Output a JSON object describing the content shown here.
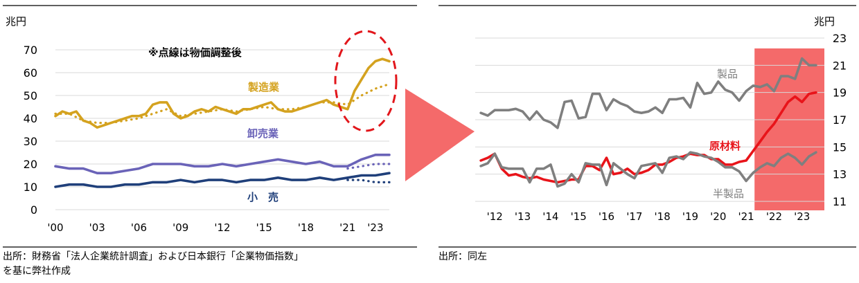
{
  "left_chart": {
    "unit": "兆円",
    "note": "※点線は物価調整後",
    "source_line1": "出所：財務省「法人企業統計調査」および日本銀行「企業物価指数」",
    "source_line2": "を基に弊社作成"
  },
  "right_chart": {
    "unit": "兆円",
    "source": "出所：同左"
  },
  "chart_data": [
    {
      "type": "line",
      "title": "",
      "ylabel": "兆円",
      "ylim": [
        0,
        70
      ],
      "yticks": [
        "0",
        "10",
        "20",
        "30",
        "40",
        "50",
        "60",
        "70"
      ],
      "xlim": [
        2000,
        2024
      ],
      "xticks": [
        {
          "x": 2000,
          "label": "'00"
        },
        {
          "x": 2003,
          "label": "'03"
        },
        {
          "x": 2006,
          "label": "'06"
        },
        {
          "x": 2009,
          "label": "'09"
        },
        {
          "x": 2012,
          "label": "'12"
        },
        {
          "x": 2015,
          "label": "'15"
        },
        {
          "x": 2018,
          "label": "'18"
        },
        {
          "x": 2021,
          "label": "'21"
        },
        {
          "x": 2023,
          "label": "'23"
        }
      ],
      "grid": true,
      "annotations": [
        "※点線は物価調整後"
      ],
      "series": [
        {
          "name": "製造業",
          "color": "#d4a21f",
          "style": "solid",
          "x": [
            2000,
            2000.5,
            2001,
            2001.5,
            2002,
            2002.5,
            2003,
            2003.5,
            2004,
            2004.5,
            2005,
            2005.5,
            2006,
            2006.5,
            2007,
            2007.5,
            2008,
            2008.5,
            2009,
            2009.5,
            2010,
            2010.5,
            2011,
            2011.5,
            2012,
            2012.5,
            2013,
            2013.5,
            2014,
            2014.5,
            2015,
            2015.5,
            2016,
            2016.5,
            2017,
            2017.5,
            2018,
            2018.5,
            2019,
            2019.5,
            2020,
            2020.5,
            2021,
            2021.5,
            2022,
            2022.5,
            2023,
            2023.5,
            2024
          ],
          "y": [
            41,
            43,
            42,
            43,
            39,
            38,
            36,
            37,
            38,
            39,
            40,
            41,
            41,
            42,
            46,
            47,
            47,
            42,
            40,
            41,
            43,
            44,
            43,
            45,
            44,
            43,
            42,
            44,
            44,
            45,
            46,
            47,
            44,
            43,
            43,
            44,
            45,
            46,
            47,
            48,
            46,
            45,
            44,
            52,
            57,
            62,
            65,
            66,
            65
          ]
        },
        {
          "name": "",
          "color": "#d4a21f",
          "style": "dotted",
          "x": [
            2000,
            2001,
            2002,
            2003,
            2004,
            2005,
            2006,
            2007,
            2008,
            2009,
            2010,
            2011,
            2012,
            2013,
            2014,
            2015,
            2016,
            2017,
            2018,
            2019,
            2020,
            2021,
            2022,
            2023,
            2024
          ],
          "y": [
            42,
            42,
            39,
            38,
            38,
            39,
            40,
            42,
            44,
            41,
            42,
            43,
            44,
            43,
            44,
            45,
            44,
            44,
            45,
            47,
            47,
            46,
            50,
            53,
            55
          ]
        },
        {
          "name": "卸売業",
          "color": "#6a63b8",
          "style": "solid",
          "x": [
            2000,
            2001,
            2002,
            2003,
            2004,
            2005,
            2006,
            2007,
            2008,
            2009,
            2010,
            2011,
            2012,
            2013,
            2014,
            2015,
            2016,
            2017,
            2018,
            2019,
            2020,
            2021,
            2022,
            2023,
            2024
          ],
          "y": [
            19,
            18,
            18,
            16,
            16,
            17,
            18,
            20,
            20,
            20,
            19,
            19,
            20,
            19,
            20,
            21,
            22,
            21,
            20,
            21,
            19,
            19,
            22,
            24,
            24
          ]
        },
        {
          "name": "",
          "color": "#6a63b8",
          "style": "dotted",
          "x": [
            2021,
            2022,
            2023,
            2024
          ],
          "y": [
            18,
            19,
            20,
            20
          ]
        },
        {
          "name": "小　売",
          "color": "#1f3f7a",
          "style": "solid",
          "x": [
            2000,
            2001,
            2002,
            2003,
            2004,
            2005,
            2006,
            2007,
            2008,
            2009,
            2010,
            2011,
            2012,
            2013,
            2014,
            2015,
            2016,
            2017,
            2018,
            2019,
            2020,
            2021,
            2022,
            2023,
            2024
          ],
          "y": [
            10,
            11,
            11,
            10,
            10,
            11,
            11,
            12,
            12,
            13,
            12,
            13,
            13,
            12,
            13,
            13,
            14,
            13,
            13,
            14,
            13,
            14,
            15,
            15,
            16
          ]
        },
        {
          "name": "",
          "color": "#1f3f7a",
          "style": "dotted",
          "x": [
            2021,
            2022,
            2023,
            2024
          ],
          "y": [
            13,
            13,
            12,
            12
          ]
        }
      ]
    },
    {
      "type": "line",
      "title": "",
      "ylabel": "兆円",
      "ylim": [
        11,
        23
      ],
      "yticks": [
        "11",
        "13",
        "15",
        "17",
        "19",
        "21",
        "23"
      ],
      "y_axis_position": "right",
      "xlim": [
        2011.3,
        2023.8
      ],
      "xticks": [
        {
          "x": 2012,
          "label": "'12"
        },
        {
          "x": 2013,
          "label": "'13"
        },
        {
          "x": 2014,
          "label": "'14"
        },
        {
          "x": 2015,
          "label": "'15"
        },
        {
          "x": 2016,
          "label": "'16"
        },
        {
          "x": 2017,
          "label": "'17"
        },
        {
          "x": 2018,
          "label": "'18"
        },
        {
          "x": 2019,
          "label": "'19"
        },
        {
          "x": 2020,
          "label": "'20"
        },
        {
          "x": 2021,
          "label": "'21"
        },
        {
          "x": 2022,
          "label": "'22"
        },
        {
          "x": 2023,
          "label": "'23"
        }
      ],
      "grid": true,
      "highlight_range": [
        2021.3,
        2023.8
      ],
      "highlight_color": "#f46a6a",
      "series": [
        {
          "name": "製品",
          "color": "#7f7f7f",
          "x": [
            2011.5,
            2011.75,
            2012,
            2012.25,
            2012.5,
            2012.75,
            2013,
            2013.25,
            2013.5,
            2013.75,
            2014,
            2014.25,
            2014.5,
            2014.75,
            2015,
            2015.25,
            2015.5,
            2015.75,
            2016,
            2016.25,
            2016.5,
            2016.75,
            2017,
            2017.25,
            2017.5,
            2017.75,
            2018,
            2018.25,
            2018.5,
            2018.75,
            2019,
            2019.25,
            2019.5,
            2019.75,
            2020,
            2020.25,
            2020.5,
            2020.75,
            2021,
            2021.25,
            2021.5,
            2021.75,
            2022,
            2022.25,
            2022.5,
            2022.75,
            2023,
            2023.25,
            2023.5
          ],
          "y": [
            17.5,
            17.3,
            17.7,
            17.7,
            17.7,
            17.8,
            17.6,
            17.0,
            17.6,
            17.0,
            16.8,
            16.4,
            18.3,
            18.4,
            17.1,
            17.2,
            18.9,
            18.9,
            17.7,
            18.5,
            18.2,
            18.0,
            17.6,
            17.5,
            17.6,
            17.9,
            17.5,
            18.5,
            18.5,
            18.6,
            17.9,
            19.7,
            18.9,
            19.0,
            19.8,
            19.2,
            19.0,
            18.4,
            19.1,
            19.5,
            19.4,
            19.6,
            19.1,
            20.2,
            20.2,
            20.0,
            21.5,
            21.0,
            21.0
          ]
        },
        {
          "name": "原材料",
          "color": "#e8141a",
          "x": [
            2011.5,
            2011.75,
            2012,
            2012.25,
            2012.5,
            2012.75,
            2013,
            2013.25,
            2013.5,
            2013.75,
            2014,
            2014.25,
            2014.5,
            2014.75,
            2015,
            2015.25,
            2015.5,
            2015.75,
            2016,
            2016.25,
            2016.5,
            2016.75,
            2017,
            2017.25,
            2017.5,
            2017.75,
            2018,
            2018.25,
            2018.5,
            2018.75,
            2019,
            2019.25,
            2019.5,
            2019.75,
            2020,
            2020.25,
            2020.5,
            2020.75,
            2021,
            2021.25,
            2021.5,
            2021.75,
            2022,
            2022.25,
            2022.5,
            2022.75,
            2023,
            2023.25,
            2023.5
          ],
          "y": [
            14.0,
            14.2,
            14.5,
            13.4,
            12.9,
            13.0,
            12.8,
            12.7,
            12.8,
            12.6,
            12.5,
            12.4,
            12.5,
            12.6,
            12.6,
            13.6,
            13.6,
            13.3,
            14.2,
            13.0,
            13.1,
            13.4,
            13.0,
            13.1,
            13.3,
            13.7,
            13.7,
            13.9,
            14.2,
            14.3,
            14.5,
            14.4,
            14.4,
            14.1,
            14.1,
            13.7,
            13.7,
            13.9,
            14.0,
            14.7,
            15.4,
            16.1,
            16.7,
            17.5,
            18.3,
            18.7,
            18.3,
            18.9,
            19.0
          ]
        },
        {
          "name": "半製品",
          "color": "#7f7f7f",
          "x": [
            2011.5,
            2011.75,
            2012,
            2012.25,
            2012.5,
            2012.75,
            2013,
            2013.25,
            2013.5,
            2013.75,
            2014,
            2014.25,
            2014.5,
            2014.75,
            2015,
            2015.25,
            2015.5,
            2015.75,
            2016,
            2016.25,
            2016.5,
            2016.75,
            2017,
            2017.25,
            2017.5,
            2017.75,
            2018,
            2018.25,
            2018.5,
            2018.75,
            2019,
            2019.25,
            2019.5,
            2019.75,
            2020,
            2020.25,
            2020.5,
            2020.75,
            2021,
            2021.25,
            2021.5,
            2021.75,
            2022,
            2022.25,
            2022.5,
            2022.75,
            2023,
            2023.25,
            2023.5
          ],
          "y": [
            13.6,
            13.8,
            14.5,
            13.5,
            13.4,
            13.4,
            13.4,
            12.4,
            13.4,
            13.4,
            13.7,
            12.1,
            12.3,
            13.0,
            12.4,
            13.8,
            13.7,
            13.7,
            12.2,
            13.8,
            13.4,
            13.0,
            12.7,
            13.6,
            13.7,
            13.8,
            13.1,
            14.2,
            14.3,
            14.1,
            14.6,
            14.5,
            14.3,
            14.2,
            13.9,
            13.5,
            13.5,
            13.2,
            12.5,
            13.1,
            13.5,
            13.8,
            13.6,
            14.2,
            14.5,
            14.2,
            13.7,
            14.3,
            14.6
          ]
        }
      ]
    }
  ]
}
